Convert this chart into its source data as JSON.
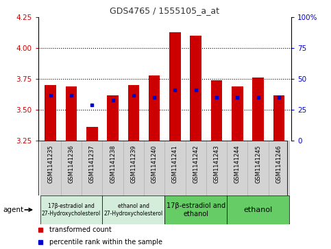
{
  "title": "GDS4765 / 1555105_a_at",
  "samples": [
    "GSM1141235",
    "GSM1141236",
    "GSM1141237",
    "GSM1141238",
    "GSM1141239",
    "GSM1141240",
    "GSM1141241",
    "GSM1141242",
    "GSM1141243",
    "GSM1141244",
    "GSM1141245",
    "GSM1141246"
  ],
  "red_values": [
    3.7,
    3.69,
    3.36,
    3.62,
    3.7,
    3.78,
    4.13,
    4.1,
    3.74,
    3.69,
    3.76,
    3.62
  ],
  "blue_values": [
    3.62,
    3.62,
    3.54,
    3.58,
    3.62,
    3.6,
    3.66,
    3.66,
    3.6,
    3.6,
    3.6,
    3.6
  ],
  "y_min": 3.25,
  "y_max": 4.25,
  "y_ticks": [
    3.25,
    3.5,
    3.75,
    4.0,
    4.25
  ],
  "y_right_ticks": [
    0,
    25,
    50,
    75,
    100
  ],
  "group_configs": [
    {
      "label": "17β-estradiol and\n27-Hydroxycholesterol",
      "cols": [
        0,
        1,
        2
      ],
      "color": "#d4edda",
      "fontsize": 5.5
    },
    {
      "label": "ethanol and\n27-Hydroxycholesterol",
      "cols": [
        3,
        4,
        5
      ],
      "color": "#d4edda",
      "fontsize": 5.5
    },
    {
      "label": "17β-estradiol and\nethanol",
      "cols": [
        6,
        7,
        8
      ],
      "color": "#66cc66",
      "fontsize": 7
    },
    {
      "label": "ethanol",
      "cols": [
        9,
        10,
        11
      ],
      "color": "#66cc66",
      "fontsize": 8
    }
  ],
  "bar_color": "#cc0000",
  "blue_color": "#0000cc",
  "plot_bg": "#ffffff",
  "left_axis_color": "#cc0000",
  "right_axis_color": "#0000cc",
  "gray_bg": "#d3d3d3",
  "agent_label": "agent"
}
